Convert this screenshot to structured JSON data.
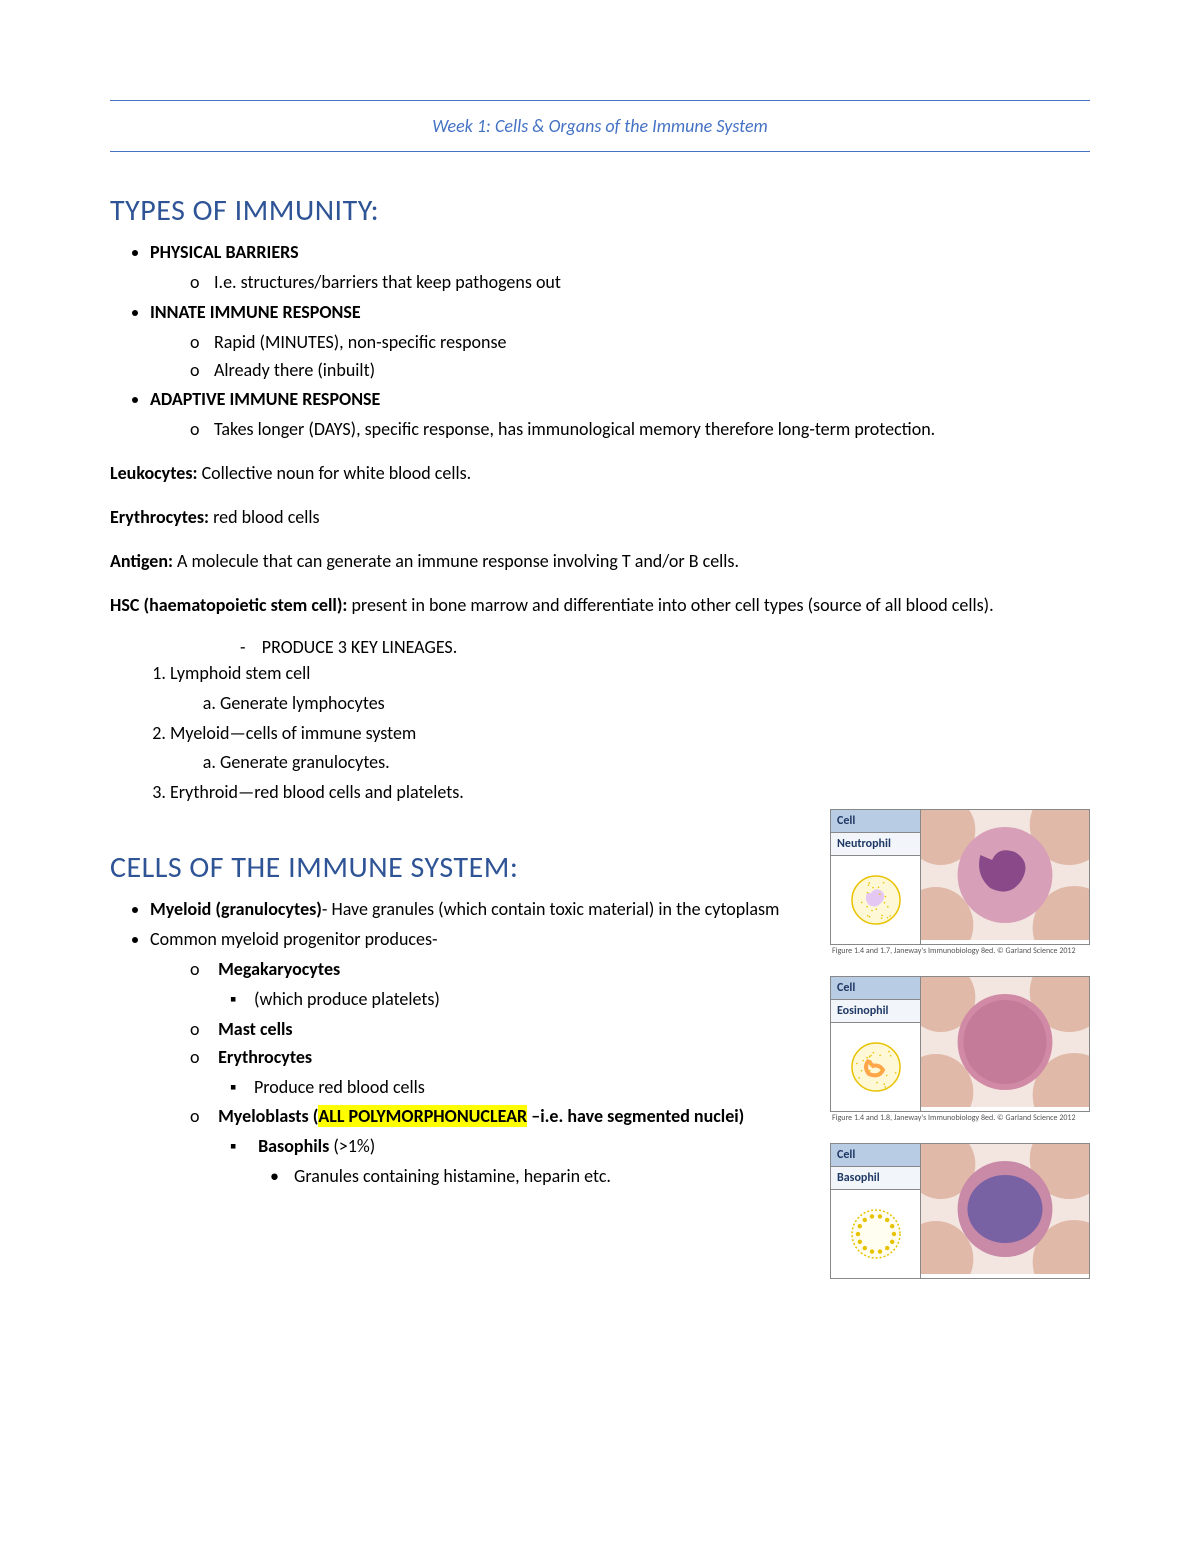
{
  "header": {
    "title": "Week 1: Cells & Organs of the Immune System",
    "rule_color": "#4472c4",
    "title_color": "#4472c4",
    "title_fontsize": 18,
    "title_style": "italic"
  },
  "section1": {
    "heading": "TYPES OF IMMUNITY:",
    "heading_color": "#2e5496",
    "heading_fontsize": 30,
    "items": [
      {
        "label": "PHYSICAL BARRIERS",
        "subs": [
          "I.e. structures/barriers that keep pathogens out"
        ]
      },
      {
        "label": "INNATE IMMUNE RESPONSE",
        "subs": [
          "Rapid (MINUTES), non-specific response",
          "Already there (inbuilt)"
        ]
      },
      {
        "label": "ADAPTIVE IMMUNE RESPONSE",
        "subs": [
          "Takes longer (DAYS), specific response, has immunological memory therefore long-term protection."
        ]
      }
    ]
  },
  "definitions": {
    "leukocytes_term": "Leukocytes:",
    "leukocytes_def": " Collective noun for white blood cells.",
    "erythrocytes_term": "Erythrocytes:",
    "erythrocytes_def": " red blood cells",
    "antigen_term": "Antigen:",
    "antigen_def": " A molecule that can generate an immune response involving T and/or B cells.",
    "hsc_term": "HSC (haematopoietic stem cell):",
    "hsc_def": " present in bone marrow and differentiate into other cell types (source of all blood cells)."
  },
  "lineages": {
    "dash": "PRODUCE 3 KEY LINEAGES.",
    "list": [
      {
        "label": "Lymphoid stem cell",
        "sub": "Generate lymphocytes"
      },
      {
        "label": "Myeloid—cells of immune system",
        "sub": "Generate granulocytes."
      },
      {
        "label": "Erythroid—red blood cells and platelets.",
        "sub": null
      }
    ]
  },
  "section2": {
    "heading": "CELLS OF THE IMMUNE SYSTEM:",
    "heading_color": "#2e5496",
    "heading_fontsize": 30,
    "bullet1_bold": "Myeloid (granulocytes)",
    "bullet1_rest": "- Have granules (which contain toxic material) in the cytoplasm",
    "bullet2": "Common myeloid progenitor produces-",
    "progenitors": {
      "mega": "Megakaryocytes",
      "mega_sub": "(which produce platelets)",
      "mast": "Mast cells",
      "eryth": "Erythrocytes",
      "eryth_sub": "Produce red blood cells",
      "myeloblasts_b1": "Myeloblasts (",
      "myeloblasts_hl": "ALL POLYMORPHONUCLEAR",
      "myeloblasts_b2": " –i.e. have segmented nuclei)",
      "baso_label": "Basophils",
      "baso_pct": " (>1%)",
      "baso_sub": "Granules containing histamine, heparin etc."
    }
  },
  "cell_cards": {
    "header_label": "Cell",
    "header_bg": "#b8cce4",
    "name_bg": "#f2f6fb",
    "text_color": "#1f3864",
    "cards": [
      {
        "name": "Neutrophil",
        "icon_fill": "#fff8d6",
        "icon_stroke": "#e6c200",
        "nucleus_fill": "#d9b3ff",
        "micro_bg": "#f3e6e0",
        "micro_cell": "#d89fb8",
        "micro_nuc": "#8a4a8a",
        "caption": "Figure 1.4 and 1.7, Janeway's Immunobiology 8ed. © Garland Science 2012"
      },
      {
        "name": "Eosinophil",
        "icon_fill": "#fff8d6",
        "icon_stroke": "#e6c200",
        "nucleus_fill": "#ffa64d",
        "micro_bg": "#f3e6e0",
        "micro_cell": "#d08aa5",
        "micro_nuc": "#b86b8e",
        "caption": "Figure 1.4 and 1.8, Janeway's Immunobiology 8ed. © Garland Science 2012"
      },
      {
        "name": "Basophil",
        "icon_fill": "#fffef0",
        "icon_stroke": "#e6c200",
        "nucleus_fill": "#e6c200",
        "micro_bg": "#f3e6e0",
        "micro_cell": "#c98aa8",
        "micro_nuc": "#6b5aa3",
        "caption": ""
      }
    ]
  },
  "highlight_color": "#ffff00"
}
